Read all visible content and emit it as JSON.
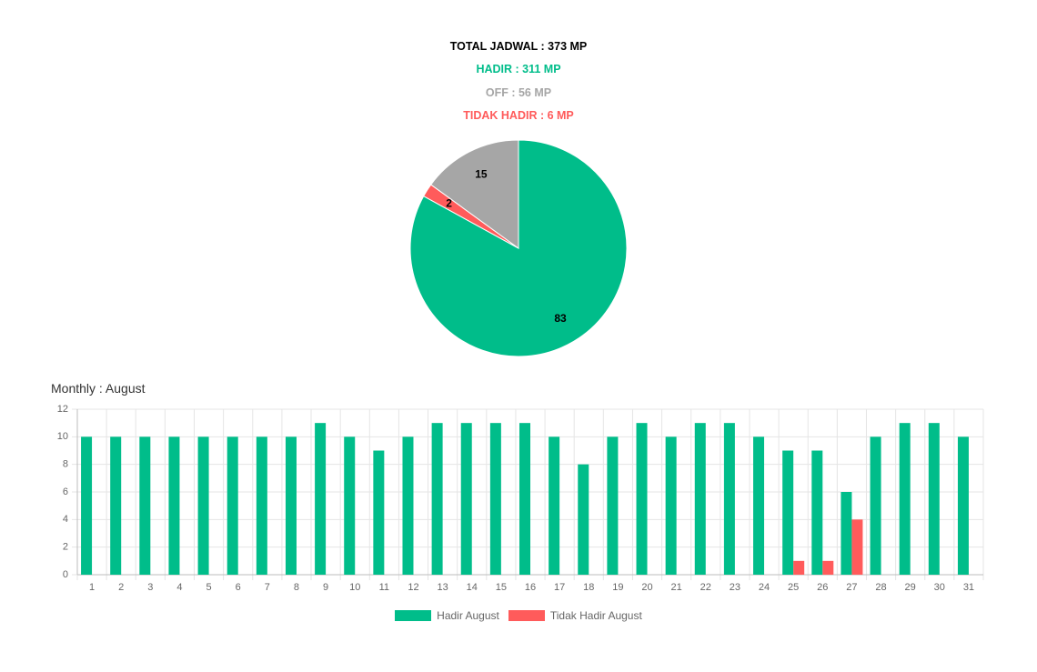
{
  "summary": {
    "total": "TOTAL JADWAL : 373 MP",
    "hadir": "HADIR : 311 MP",
    "off": "OFF : 56 MP",
    "tidak_hadir": "TIDAK HADIR : 6 MP"
  },
  "colors": {
    "hadir": "#00BD8A",
    "off": "#A6A6A6",
    "tidak_hadir": "#FF5B5B",
    "grid": "#E5E5E5",
    "tick": "#666666"
  },
  "monthly_title": "Monthly : August",
  "chart_data": [
    {
      "type": "pie",
      "labels": [
        "Hadir",
        "Tidak Hadir",
        "Off"
      ],
      "values": [
        83,
        2,
        15
      ],
      "colors": [
        "#00BD8A",
        "#FF5B5B",
        "#A6A6A6"
      ]
    },
    {
      "type": "bar",
      "categories": [
        "1",
        "2",
        "3",
        "4",
        "5",
        "6",
        "7",
        "8",
        "9",
        "10",
        "11",
        "12",
        "13",
        "14",
        "15",
        "16",
        "17",
        "18",
        "19",
        "20",
        "21",
        "22",
        "23",
        "24",
        "25",
        "26",
        "27",
        "28",
        "29",
        "30",
        "31"
      ],
      "series": [
        {
          "name": "Hadir August",
          "color": "#00BD8A",
          "values": [
            10,
            10,
            10,
            10,
            10,
            10,
            10,
            10,
            11,
            10,
            9,
            10,
            11,
            11,
            11,
            11,
            10,
            8,
            10,
            11,
            10,
            11,
            11,
            10,
            9,
            9,
            6,
            10,
            11,
            11,
            10
          ]
        },
        {
          "name": "Tidak Hadir August",
          "color": "#FF5B5B",
          "values": [
            0,
            0,
            0,
            0,
            0,
            0,
            0,
            0,
            0,
            0,
            0,
            0,
            0,
            0,
            0,
            0,
            0,
            0,
            0,
            0,
            0,
            0,
            0,
            0,
            1,
            1,
            4,
            0,
            0,
            0,
            0
          ]
        }
      ],
      "ylim": [
        0,
        12
      ],
      "yticks": [
        0,
        2,
        4,
        6,
        8,
        10,
        12
      ],
      "grid": true,
      "legend": "bottom"
    }
  ]
}
